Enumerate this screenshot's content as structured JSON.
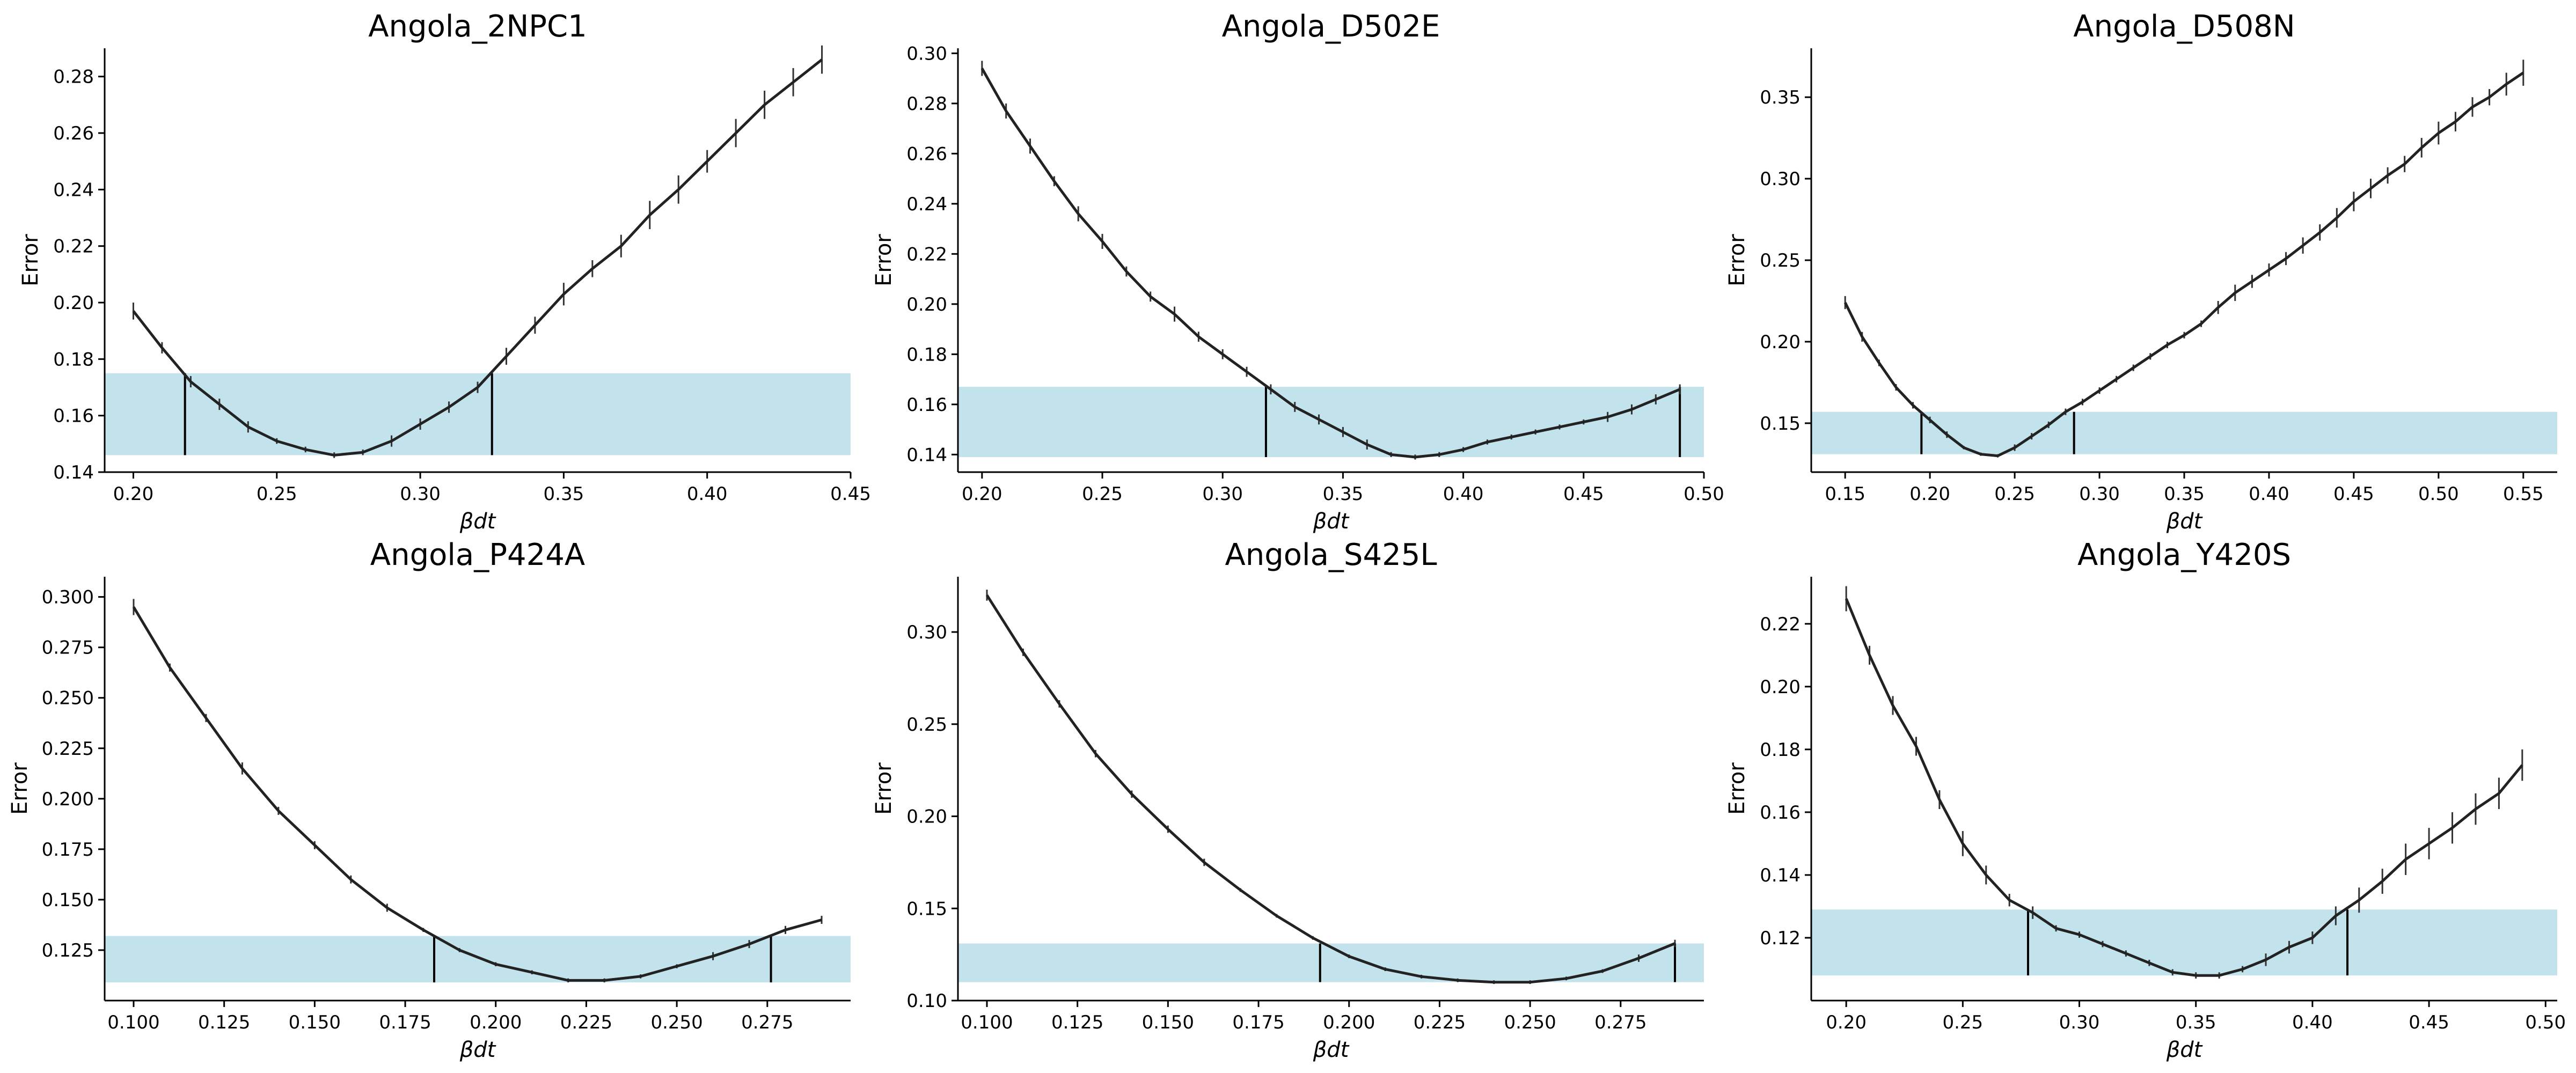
{
  "figure": {
    "band_color": "#add8e6",
    "line_color": "#222222"
  },
  "chart_data": [
    {
      "type": "line",
      "title": "Angola_2NPC1",
      "xlabel": "βdt",
      "ylabel": "Error",
      "xlim": [
        0.19,
        0.45
      ],
      "ylim": [
        0.14,
        0.29
      ],
      "xticks": [
        "0.20",
        "0.25",
        "0.30",
        "0.35",
        "0.40",
        "0.45"
      ],
      "yticks": [
        "0.14",
        "0.16",
        "0.18",
        "0.20",
        "0.22",
        "0.24",
        "0.26",
        "0.28"
      ],
      "band": [
        0.146,
        0.175
      ],
      "markers": [
        {
          "x": 0.218,
          "y0": 0.146,
          "y1": 0.175
        },
        {
          "x": 0.325,
          "y0": 0.146,
          "y1": 0.175
        }
      ],
      "x": [
        0.2,
        0.21,
        0.22,
        0.23,
        0.24,
        0.25,
        0.26,
        0.27,
        0.28,
        0.29,
        0.3,
        0.31,
        0.32,
        0.33,
        0.34,
        0.35,
        0.36,
        0.37,
        0.38,
        0.39,
        0.4,
        0.41,
        0.42,
        0.43,
        0.44
      ],
      "y": [
        0.197,
        0.184,
        0.172,
        0.164,
        0.156,
        0.151,
        0.148,
        0.146,
        0.147,
        0.151,
        0.157,
        0.163,
        0.17,
        0.181,
        0.192,
        0.203,
        0.212,
        0.22,
        0.231,
        0.24,
        0.25,
        0.26,
        0.27,
        0.278,
        0.286
      ],
      "err": [
        0.003,
        0.002,
        0.002,
        0.002,
        0.002,
        0.001,
        0.001,
        0.001,
        0.001,
        0.002,
        0.002,
        0.002,
        0.002,
        0.003,
        0.003,
        0.004,
        0.003,
        0.004,
        0.005,
        0.005,
        0.004,
        0.005,
        0.005,
        0.005,
        0.005
      ]
    },
    {
      "type": "line",
      "title": "Angola_D502E",
      "xlabel": "βdt",
      "ylabel": "Error",
      "xlim": [
        0.19,
        0.5
      ],
      "ylim": [
        0.133,
        0.302
      ],
      "xticks": [
        "0.20",
        "0.25",
        "0.30",
        "0.35",
        "0.40",
        "0.45",
        "0.50"
      ],
      "yticks": [
        "0.14",
        "0.16",
        "0.18",
        "0.20",
        "0.22",
        "0.24",
        "0.26",
        "0.28",
        "0.30"
      ],
      "band": [
        0.139,
        0.167
      ],
      "markers": [
        {
          "x": 0.318,
          "y0": 0.139,
          "y1": 0.167
        },
        {
          "x": 0.49,
          "y0": 0.139,
          "y1": 0.167
        }
      ],
      "x": [
        0.2,
        0.21,
        0.22,
        0.23,
        0.24,
        0.25,
        0.26,
        0.27,
        0.28,
        0.29,
        0.3,
        0.31,
        0.32,
        0.33,
        0.34,
        0.35,
        0.36,
        0.37,
        0.38,
        0.39,
        0.4,
        0.41,
        0.42,
        0.43,
        0.44,
        0.45,
        0.46,
        0.47,
        0.48,
        0.49
      ],
      "y": [
        0.294,
        0.277,
        0.263,
        0.249,
        0.236,
        0.225,
        0.213,
        0.203,
        0.196,
        0.187,
        0.18,
        0.173,
        0.166,
        0.159,
        0.154,
        0.149,
        0.144,
        0.14,
        0.139,
        0.14,
        0.142,
        0.145,
        0.147,
        0.149,
        0.151,
        0.153,
        0.155,
        0.158,
        0.162,
        0.166
      ],
      "err": [
        0.003,
        0.003,
        0.003,
        0.002,
        0.003,
        0.003,
        0.002,
        0.002,
        0.003,
        0.002,
        0.002,
        0.002,
        0.002,
        0.002,
        0.002,
        0.002,
        0.002,
        0.001,
        0.001,
        0.001,
        0.001,
        0.001,
        0.001,
        0.001,
        0.001,
        0.001,
        0.002,
        0.002,
        0.002,
        0.002
      ]
    },
    {
      "type": "line",
      "title": "Angola_D508N",
      "xlabel": "βdt",
      "ylabel": "Error",
      "xlim": [
        0.13,
        0.57
      ],
      "ylim": [
        0.12,
        0.38
      ],
      "xticks": [
        "0.15",
        "0.20",
        "0.25",
        "0.30",
        "0.35",
        "0.40",
        "0.45",
        "0.50",
        "0.55"
      ],
      "yticks": [
        "0.15",
        "0.20",
        "0.25",
        "0.30",
        "0.35"
      ],
      "band": [
        0.131,
        0.157
      ],
      "markers": [
        {
          "x": 0.195,
          "y0": 0.131,
          "y1": 0.157
        },
        {
          "x": 0.285,
          "y0": 0.131,
          "y1": 0.157
        }
      ],
      "x": [
        0.15,
        0.16,
        0.17,
        0.18,
        0.19,
        0.2,
        0.21,
        0.22,
        0.23,
        0.24,
        0.25,
        0.26,
        0.27,
        0.28,
        0.29,
        0.3,
        0.31,
        0.32,
        0.33,
        0.34,
        0.35,
        0.36,
        0.37,
        0.38,
        0.39,
        0.4,
        0.41,
        0.42,
        0.43,
        0.44,
        0.45,
        0.46,
        0.47,
        0.48,
        0.49,
        0.5,
        0.51,
        0.52,
        0.53,
        0.54,
        0.55
      ],
      "y": [
        0.224,
        0.203,
        0.187,
        0.172,
        0.161,
        0.152,
        0.143,
        0.135,
        0.131,
        0.13,
        0.135,
        0.142,
        0.149,
        0.157,
        0.163,
        0.17,
        0.177,
        0.184,
        0.191,
        0.198,
        0.204,
        0.211,
        0.221,
        0.23,
        0.237,
        0.244,
        0.251,
        0.259,
        0.267,
        0.276,
        0.286,
        0.294,
        0.302,
        0.309,
        0.319,
        0.328,
        0.335,
        0.344,
        0.35,
        0.358,
        0.365
      ],
      "err": [
        0.004,
        0.003,
        0.002,
        0.002,
        0.002,
        0.002,
        0.002,
        0.001,
        0.001,
        0.001,
        0.002,
        0.002,
        0.002,
        0.002,
        0.002,
        0.002,
        0.002,
        0.002,
        0.002,
        0.002,
        0.002,
        0.002,
        0.004,
        0.005,
        0.004,
        0.004,
        0.004,
        0.005,
        0.005,
        0.006,
        0.006,
        0.006,
        0.005,
        0.005,
        0.006,
        0.007,
        0.006,
        0.006,
        0.005,
        0.007,
        0.008
      ]
    },
    {
      "type": "line",
      "title": "Angola_P424A",
      "xlabel": "βdt",
      "ylabel": "Error",
      "xlim": [
        0.092,
        0.298
      ],
      "ylim": [
        0.1,
        0.31
      ],
      "xticks": [
        "0.100",
        "0.125",
        "0.150",
        "0.175",
        "0.200",
        "0.225",
        "0.250",
        "0.275"
      ],
      "yticks": [
        "0.125",
        "0.150",
        "0.175",
        "0.200",
        "0.225",
        "0.250",
        "0.275",
        "0.300"
      ],
      "band": [
        0.109,
        0.132
      ],
      "markers": [
        {
          "x": 0.183,
          "y0": 0.109,
          "y1": 0.132
        },
        {
          "x": 0.276,
          "y0": 0.109,
          "y1": 0.132
        }
      ],
      "x": [
        0.1,
        0.11,
        0.12,
        0.13,
        0.14,
        0.15,
        0.16,
        0.17,
        0.18,
        0.19,
        0.2,
        0.21,
        0.22,
        0.23,
        0.24,
        0.25,
        0.26,
        0.27,
        0.28,
        0.29
      ],
      "y": [
        0.295,
        0.265,
        0.24,
        0.215,
        0.194,
        0.177,
        0.16,
        0.146,
        0.135,
        0.125,
        0.118,
        0.114,
        0.11,
        0.11,
        0.112,
        0.117,
        0.122,
        0.128,
        0.135,
        0.14
      ],
      "err": [
        0.004,
        0.002,
        0.002,
        0.003,
        0.002,
        0.002,
        0.002,
        0.002,
        0.001,
        0.001,
        0.001,
        0.001,
        0.001,
        0.001,
        0.001,
        0.001,
        0.002,
        0.002,
        0.002,
        0.002
      ]
    },
    {
      "type": "line",
      "title": "Angola_S425L",
      "xlabel": "βdt",
      "ylabel": "Error",
      "xlim": [
        0.092,
        0.298
      ],
      "ylim": [
        0.1,
        0.33
      ],
      "xticks": [
        "0.100",
        "0.125",
        "0.150",
        "0.175",
        "0.200",
        "0.225",
        "0.250",
        "0.275"
      ],
      "yticks": [
        "0.10",
        "0.15",
        "0.20",
        "0.25",
        "0.30"
      ],
      "band": [
        0.11,
        0.131
      ],
      "markers": [
        {
          "x": 0.192,
          "y0": 0.11,
          "y1": 0.131
        },
        {
          "x": 0.29,
          "y0": 0.11,
          "y1": 0.131
        }
      ],
      "x": [
        0.1,
        0.11,
        0.12,
        0.13,
        0.14,
        0.15,
        0.16,
        0.17,
        0.18,
        0.19,
        0.2,
        0.21,
        0.22,
        0.23,
        0.24,
        0.25,
        0.26,
        0.27,
        0.28,
        0.29
      ],
      "y": [
        0.32,
        0.289,
        0.261,
        0.234,
        0.212,
        0.193,
        0.175,
        0.16,
        0.146,
        0.134,
        0.124,
        0.117,
        0.113,
        0.111,
        0.11,
        0.11,
        0.112,
        0.116,
        0.123,
        0.131
      ],
      "err": [
        0.003,
        0.002,
        0.002,
        0.002,
        0.002,
        0.002,
        0.002,
        0.001,
        0.001,
        0.001,
        0.001,
        0.001,
        0.001,
        0.001,
        0.001,
        0.001,
        0.001,
        0.001,
        0.002,
        0.002
      ]
    },
    {
      "type": "line",
      "title": "Angola_Y420S",
      "xlabel": "βdt",
      "ylabel": "Error",
      "xlim": [
        0.185,
        0.505
      ],
      "ylim": [
        0.1,
        0.235
      ],
      "xticks": [
        "0.20",
        "0.25",
        "0.30",
        "0.35",
        "0.40",
        "0.45",
        "0.50"
      ],
      "yticks": [
        "0.12",
        "0.14",
        "0.16",
        "0.18",
        "0.20",
        "0.22"
      ],
      "band": [
        0.108,
        0.129
      ],
      "markers": [
        {
          "x": 0.278,
          "y0": 0.108,
          "y1": 0.129
        },
        {
          "x": 0.415,
          "y0": 0.108,
          "y1": 0.129
        }
      ],
      "x": [
        0.2,
        0.21,
        0.22,
        0.23,
        0.24,
        0.25,
        0.26,
        0.27,
        0.28,
        0.29,
        0.3,
        0.31,
        0.32,
        0.33,
        0.34,
        0.35,
        0.36,
        0.37,
        0.38,
        0.39,
        0.4,
        0.41,
        0.42,
        0.43,
        0.44,
        0.45,
        0.46,
        0.47,
        0.48,
        0.49
      ],
      "y": [
        0.228,
        0.21,
        0.194,
        0.181,
        0.164,
        0.15,
        0.14,
        0.132,
        0.128,
        0.123,
        0.121,
        0.118,
        0.115,
        0.112,
        0.109,
        0.108,
        0.108,
        0.11,
        0.113,
        0.117,
        0.12,
        0.127,
        0.132,
        0.138,
        0.145,
        0.15,
        0.155,
        0.161,
        0.166,
        0.175
      ],
      "err": [
        0.004,
        0.003,
        0.003,
        0.003,
        0.003,
        0.004,
        0.003,
        0.002,
        0.002,
        0.001,
        0.001,
        0.001,
        0.001,
        0.001,
        0.001,
        0.001,
        0.001,
        0.001,
        0.002,
        0.002,
        0.002,
        0.003,
        0.004,
        0.004,
        0.005,
        0.005,
        0.005,
        0.005,
        0.005,
        0.005
      ]
    }
  ]
}
